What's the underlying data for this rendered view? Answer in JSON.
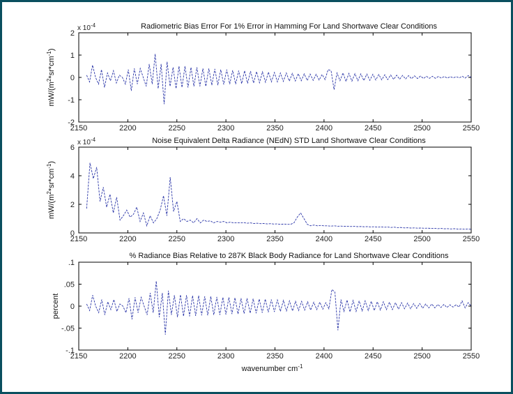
{
  "colors": {
    "frame": "#0a4f5f",
    "line": "#2b36a8",
    "axes": "#000000"
  },
  "chart_data": [
    {
      "type": "line",
      "title": "Radiometric Bias Error For 1% Error in Hamming For Land Shortwave Clear Conditions",
      "ylabel_main": "mW/(m",
      "ylabel_sup1": "2",
      "ylabel_mid": "*sr*cm",
      "ylabel_sup2": "-1",
      "ylabel_end": ")",
      "exponent_base": "x 10",
      "exponent_power": "-4",
      "xlim": [
        2150,
        2550
      ],
      "ylim": [
        -2,
        2
      ],
      "xticks": [
        2150,
        2200,
        2250,
        2300,
        2350,
        2400,
        2450,
        2500,
        2550
      ],
      "yticks": [
        -2,
        -1,
        0,
        1,
        2
      ],
      "series": [
        {
          "x_start": 2158,
          "x_end": 2550,
          "values": [
            0.1,
            -0.2,
            0.55,
            0.0,
            -0.3,
            0.35,
            -0.45,
            0.2,
            -0.15,
            0.3,
            -0.25,
            0.1,
            0.0,
            -0.3,
            0.35,
            -0.6,
            0.4,
            -0.3,
            0.4,
            0.0,
            -0.4,
            0.6,
            -0.3,
            1.05,
            -0.5,
            0.6,
            -1.2,
            0.7,
            -0.4,
            0.45,
            -0.5,
            0.5,
            -0.45,
            0.5,
            -0.45,
            0.45,
            -0.4,
            0.45,
            -0.4,
            0.4,
            -0.4,
            0.4,
            -0.35,
            0.38,
            -0.35,
            0.35,
            -0.32,
            0.35,
            -0.3,
            0.32,
            -0.3,
            0.3,
            -0.28,
            0.3,
            -0.27,
            0.28,
            -0.25,
            0.26,
            -0.24,
            0.25,
            -0.22,
            0.24,
            -0.2,
            0.22,
            -0.2,
            0.2,
            -0.18,
            0.2,
            -0.17,
            0.18,
            -0.16,
            0.17,
            -0.15,
            0.16,
            -0.14,
            0.15,
            -0.13,
            0.14,
            -0.12,
            0.13,
            -0.1,
            0.35,
            0.3,
            -0.55,
            0.2,
            -0.15,
            0.2,
            -0.18,
            0.18,
            -0.17,
            0.17,
            -0.15,
            0.16,
            -0.14,
            0.15,
            -0.13,
            0.14,
            -0.12,
            0.13,
            -0.11,
            0.12,
            -0.1,
            0.11,
            -0.09,
            0.1,
            -0.08,
            0.09,
            -0.07,
            0.08,
            -0.06,
            0.07,
            -0.05,
            0.06,
            -0.05,
            0.05,
            -0.04,
            0.05,
            -0.04,
            0.04,
            -0.03,
            0.04,
            -0.03,
            0.03,
            -0.02,
            0.03,
            -0.02,
            0.05,
            -0.03,
            0.08,
            0.0
          ]
        }
      ]
    },
    {
      "type": "line",
      "title": "Noise Equivalent Delta Radiance (NEdN) STD Land Shortwave Clear Conditions",
      "ylabel_main": "mW/(m",
      "ylabel_sup1": "2",
      "ylabel_mid": "*sr*cm",
      "ylabel_sup2": "-1",
      "ylabel_end": ")",
      "exponent_base": "x 10",
      "exponent_power": "-4",
      "xlim": [
        2150,
        2550
      ],
      "ylim": [
        0,
        6
      ],
      "xticks": [
        2150,
        2200,
        2250,
        2300,
        2350,
        2400,
        2450,
        2500,
        2550
      ],
      "yticks": [
        0,
        2,
        4,
        6
      ],
      "series": [
        {
          "x_start": 2158,
          "x_end": 2550,
          "values": [
            1.7,
            4.9,
            3.8,
            4.6,
            2.2,
            3.2,
            1.8,
            2.7,
            1.4,
            2.5,
            0.9,
            1.2,
            1.6,
            1.1,
            1.3,
            1.8,
            0.8,
            1.4,
            0.5,
            1.2,
            0.7,
            1.0,
            1.6,
            2.6,
            1.2,
            3.9,
            1.5,
            2.2,
            0.8,
            1.0,
            0.8,
            0.9,
            0.7,
            1.0,
            0.7,
            0.9,
            0.8,
            0.85,
            0.7,
            0.8,
            0.75,
            0.8,
            0.7,
            0.75,
            0.7,
            0.72,
            0.7,
            0.72,
            0.68,
            0.7,
            0.66,
            0.68,
            0.65,
            0.66,
            0.63,
            0.65,
            0.62,
            0.63,
            0.6,
            0.62,
            0.6,
            0.6,
            0.7,
            1.1,
            1.4,
            1.0,
            0.6,
            0.5,
            0.55,
            0.5,
            0.52,
            0.5,
            0.5,
            0.48,
            0.5,
            0.47,
            0.48,
            0.46,
            0.47,
            0.45,
            0.46,
            0.44,
            0.45,
            0.43,
            0.44,
            0.42,
            0.43,
            0.4,
            0.42,
            0.4,
            0.41,
            0.38,
            0.4,
            0.37,
            0.38,
            0.35,
            0.36,
            0.34,
            0.35,
            0.33,
            0.34,
            0.32,
            0.33,
            0.31,
            0.32,
            0.3,
            0.31,
            0.29,
            0.3,
            0.28,
            0.3,
            0.27,
            0.28,
            0.26,
            0.28,
            0.25
          ]
        }
      ]
    },
    {
      "type": "line",
      "title": "% Radiance Bias Relative to 287K Black Body Radiance for Land Shortwave Clear Conditions",
      "ylabel": "percent",
      "xlabel": "wavenumber cm",
      "xlabel_sup": "-1",
      "xlim": [
        2150,
        2550
      ],
      "ylim": [
        -0.1,
        0.1
      ],
      "xticks": [
        2150,
        2200,
        2250,
        2300,
        2350,
        2400,
        2450,
        2500,
        2550
      ],
      "yticks": [
        -0.1,
        -0.05,
        0,
        0.05,
        0.1
      ],
      "series": [
        {
          "x_start": 2158,
          "x_end": 2550,
          "values": [
            0.005,
            -0.01,
            0.025,
            0.0,
            -0.015,
            0.015,
            -0.02,
            0.01,
            -0.008,
            0.015,
            -0.012,
            0.005,
            0.0,
            -0.015,
            0.018,
            -0.03,
            0.02,
            -0.015,
            0.02,
            0.0,
            -0.02,
            0.03,
            -0.015,
            0.057,
            -0.025,
            0.03,
            -0.065,
            0.035,
            -0.02,
            0.025,
            -0.025,
            0.026,
            -0.023,
            0.025,
            -0.023,
            0.024,
            -0.022,
            0.024,
            -0.021,
            0.022,
            -0.021,
            0.022,
            -0.02,
            0.021,
            -0.02,
            0.02,
            -0.019,
            0.02,
            -0.018,
            0.019,
            -0.018,
            0.018,
            -0.017,
            0.018,
            -0.016,
            0.017,
            -0.016,
            0.016,
            -0.015,
            0.016,
            -0.014,
            0.015,
            -0.013,
            0.014,
            -0.012,
            0.013,
            -0.011,
            0.012,
            -0.011,
            0.011,
            -0.01,
            0.011,
            -0.009,
            0.01,
            -0.009,
            0.009,
            -0.008,
            0.009,
            -0.007,
            0.008,
            -0.006,
            0.038,
            0.032,
            -0.055,
            0.015,
            -0.012,
            0.014,
            -0.013,
            0.013,
            -0.012,
            0.012,
            -0.011,
            0.012,
            -0.01,
            0.011,
            -0.01,
            0.01,
            -0.009,
            0.01,
            -0.008,
            0.009,
            -0.008,
            0.008,
            -0.007,
            0.008,
            -0.006,
            0.007,
            -0.006,
            0.006,
            -0.005,
            0.006,
            -0.005,
            0.005,
            -0.004,
            0.005,
            -0.004,
            0.004,
            -0.003,
            0.004,
            -0.003,
            0.003,
            -0.002,
            0.003,
            -0.002,
            0.012,
            -0.004,
            0.008,
            0.0
          ]
        }
      ]
    }
  ]
}
